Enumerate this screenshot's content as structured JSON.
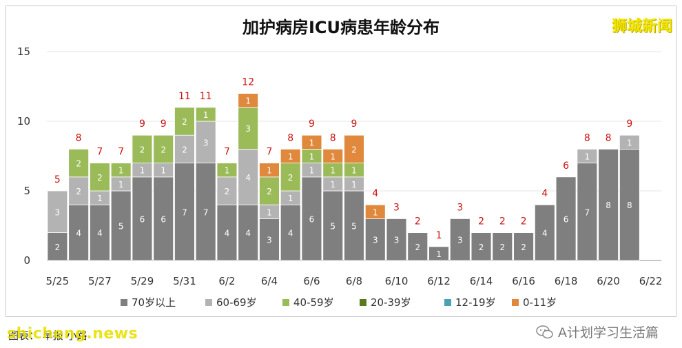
{
  "watermark_top": "狮城新闻",
  "caption": "图表： 早报 小路",
  "watermark_bottom": "shicheng.news",
  "wechat_label": "A计划学习生活篇",
  "colors": {
    "70岁以上": "#7f7f7f",
    "60-69岁": "#b3b3b3",
    "40-59岁": "#9bbb59",
    "20-39岁": "#5a7a1e",
    "12-19岁": "#4aa0b5",
    "0-11岁": "#e0893c",
    "total_label": "#cc1111"
  },
  "chart_data": {
    "type": "bar",
    "stacked": true,
    "title": "加护病房ICU病患年龄分布",
    "ylim": [
      0,
      15
    ],
    "yticks": [
      0,
      5,
      10,
      15
    ],
    "x_tick_labels": [
      "5/25",
      "5/27",
      "5/29",
      "5/31",
      "6/2",
      "6/4",
      "6/6",
      "6/8",
      "6/10",
      "6/12",
      "6/14",
      "6/16",
      "6/18",
      "6/20",
      "6/22"
    ],
    "categories": [
      "5/25",
      "5/26",
      "5/27",
      "5/28",
      "5/29",
      "5/30",
      "5/31",
      "6/1",
      "6/2",
      "6/3",
      "6/4",
      "6/5",
      "6/6",
      "6/7",
      "6/8",
      "6/9",
      "6/10",
      "6/11",
      "6/12",
      "6/13",
      "6/14",
      "6/15",
      "6/16",
      "6/17",
      "6/18",
      "6/19",
      "6/20",
      "6/21",
      "6/22"
    ],
    "series": [
      {
        "name": "70岁以上",
        "values": [
          2,
          4,
          4,
          5,
          6,
          6,
          7,
          7,
          4,
          4,
          3,
          4,
          6,
          5,
          5,
          3,
          3,
          2,
          1,
          3,
          2,
          2,
          2,
          4,
          6,
          7,
          8,
          8,
          0
        ]
      },
      {
        "name": "60-69岁",
        "values": [
          3,
          2,
          1,
          1,
          1,
          1,
          2,
          3,
          2,
          4,
          1,
          1,
          1,
          1,
          1,
          0,
          0,
          0,
          0,
          0,
          0,
          0,
          0,
          0,
          0,
          1,
          0,
          1,
          0
        ]
      },
      {
        "name": "40-59岁",
        "values": [
          0,
          2,
          2,
          1,
          2,
          2,
          2,
          1,
          1,
          3,
          2,
          2,
          1,
          1,
          1,
          0,
          0,
          0,
          0,
          0,
          0,
          0,
          0,
          0,
          0,
          0,
          0,
          0,
          0
        ]
      },
      {
        "name": "20-39岁",
        "values": [
          0,
          0,
          0,
          0,
          0,
          0,
          0,
          0,
          0,
          0,
          0,
          0,
          0,
          0,
          0,
          0,
          0,
          0,
          0,
          0,
          0,
          0,
          0,
          0,
          0,
          0,
          0,
          0,
          0
        ]
      },
      {
        "name": "12-19岁",
        "values": [
          0,
          0,
          0,
          0,
          0,
          0,
          0,
          0,
          0,
          0,
          0,
          0,
          0,
          0,
          0,
          0,
          0,
          0,
          0,
          0,
          0,
          0,
          0,
          0,
          0,
          0,
          0,
          0,
          0
        ]
      },
      {
        "name": "0-11岁",
        "values": [
          0,
          0,
          0,
          0,
          0,
          0,
          0,
          0,
          0,
          1,
          1,
          1,
          1,
          1,
          2,
          1,
          0,
          0,
          0,
          0,
          0,
          0,
          0,
          0,
          0,
          0,
          0,
          0,
          0
        ]
      }
    ],
    "totals": [
      5,
      8,
      7,
      7,
      9,
      9,
      11,
      11,
      7,
      12,
      7,
      8,
      9,
      8,
      9,
      4,
      3,
      2,
      1,
      3,
      2,
      2,
      2,
      4,
      6,
      8,
      8,
      9,
      null
    ],
    "legend": [
      "70岁以上",
      "60-69岁",
      "40-59岁",
      "20-39岁",
      "12-19岁",
      "0-11岁"
    ],
    "legend_position": "bottom",
    "grid": true
  }
}
